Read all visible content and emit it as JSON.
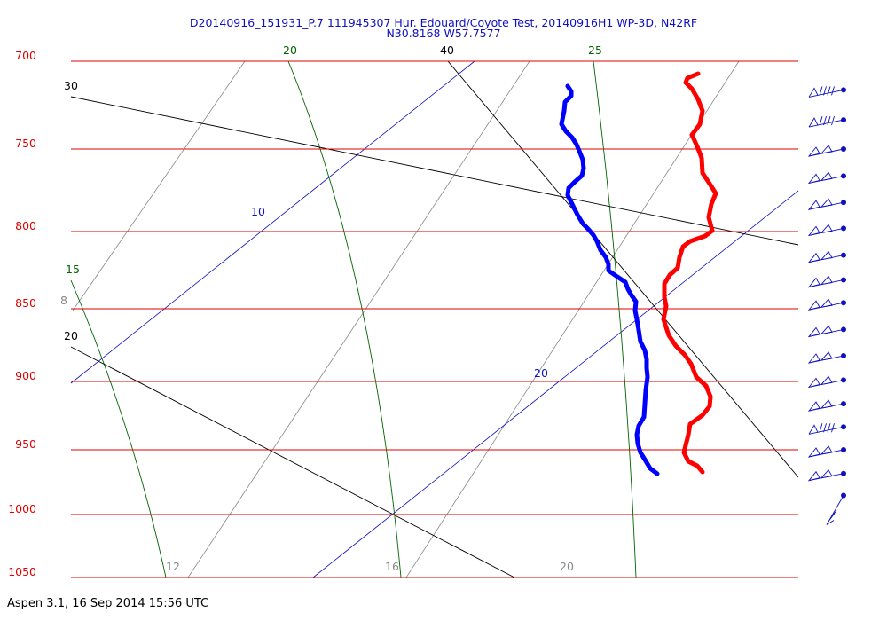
{
  "chart_data": {
    "type": "line",
    "title_line1": "D20140916_151931_P.7 111945307 Hur. Edouard/Coyote Test, 20140916H1 WP-3D, N42RF",
    "title_line2": "N30.8168 W57.7577",
    "footer": "Aspen 3.1, 16 Sep 2014  15:56 UTC",
    "pressure_axis": {
      "ticks": [
        700,
        750,
        800,
        850,
        900,
        950,
        1000,
        1050
      ],
      "labels": [
        "700",
        "750",
        "800",
        "850",
        "900",
        "950",
        "1000",
        "1050"
      ],
      "range": [
        700,
        1050
      ],
      "isobar_color": "#e00000"
    },
    "dry_adiabats": {
      "color": "#000000",
      "labels": [
        {
          "text": "30"
        },
        {
          "text": "40"
        },
        {
          "text": "20"
        }
      ]
    },
    "moist_adiabats": {
      "color": "#006400",
      "labels": [
        {
          "text": "20"
        },
        {
          "text": "25"
        },
        {
          "text": "15"
        }
      ]
    },
    "isotherms": {
      "color": "#1010c0",
      "labels": [
        {
          "text": "10"
        },
        {
          "text": "20"
        }
      ]
    },
    "mixing_ratio": {
      "color": "#888888",
      "labels": [
        {
          "text": "8"
        },
        {
          "text": "12"
        },
        {
          "text": "16"
        },
        {
          "text": "20"
        }
      ]
    },
    "series": [
      {
        "color": "#ff0000",
        "kind": "temperature",
        "points": [
          [
            787,
            83
          ],
          [
            775,
            88
          ],
          [
            773,
            93
          ],
          [
            780,
            100
          ],
          [
            787,
            112
          ],
          [
            792,
            125
          ],
          [
            789,
            140
          ],
          [
            780,
            152
          ],
          [
            786,
            165
          ],
          [
            791,
            178
          ],
          [
            792,
            195
          ],
          [
            800,
            207
          ],
          [
            807,
            218
          ],
          [
            802,
            230
          ],
          [
            799,
            245
          ],
          [
            803,
            260
          ],
          [
            795,
            266
          ],
          [
            778,
            272
          ],
          [
            770,
            278
          ],
          [
            766,
            290
          ],
          [
            764,
            302
          ],
          [
            755,
            310
          ],
          [
            749,
            320
          ],
          [
            749,
            335
          ],
          [
            751,
            345
          ],
          [
            748,
            360
          ],
          [
            754,
            378
          ],
          [
            762,
            390
          ],
          [
            772,
            400
          ],
          [
            779,
            410
          ],
          [
            785,
            425
          ],
          [
            796,
            435
          ],
          [
            801,
            447
          ],
          [
            800,
            458
          ],
          [
            792,
            468
          ],
          [
            778,
            478
          ],
          [
            776,
            490
          ],
          [
            774,
            498
          ],
          [
            771,
            510
          ],
          [
            776,
            520
          ],
          [
            786,
            525
          ],
          [
            792,
            532
          ]
        ]
      },
      {
        "color": "#0000ff",
        "kind": "dewpoint",
        "points": [
          [
            640,
            97
          ],
          [
            644,
            103
          ],
          [
            644,
            108
          ],
          [
            637,
            115
          ],
          [
            636,
            125
          ],
          [
            633,
            140
          ],
          [
            638,
            148
          ],
          [
            645,
            155
          ],
          [
            650,
            163
          ],
          [
            653,
            170
          ],
          [
            657,
            180
          ],
          [
            658,
            190
          ],
          [
            656,
            198
          ],
          [
            648,
            205
          ],
          [
            641,
            212
          ],
          [
            640,
            220
          ],
          [
            645,
            230
          ],
          [
            651,
            242
          ],
          [
            657,
            252
          ],
          [
            663,
            258
          ],
          [
            669,
            265
          ],
          [
            673,
            272
          ],
          [
            677,
            282
          ],
          [
            683,
            290
          ],
          [
            686,
            298
          ],
          [
            686,
            305
          ],
          [
            696,
            312
          ],
          [
            705,
            318
          ],
          [
            708,
            326
          ],
          [
            712,
            333
          ],
          [
            717,
            340
          ],
          [
            716,
            350
          ],
          [
            718,
            360
          ],
          [
            720,
            372
          ],
          [
            722,
            385
          ],
          [
            727,
            395
          ],
          [
            729,
            405
          ],
          [
            729,
            415
          ],
          [
            730,
            425
          ],
          [
            728,
            440
          ],
          [
            727,
            455
          ],
          [
            726,
            470
          ],
          [
            720,
            480
          ],
          [
            718,
            490
          ],
          [
            719,
            500
          ],
          [
            722,
            510
          ],
          [
            727,
            518
          ],
          [
            733,
            528
          ],
          [
            741,
            534
          ]
        ]
      }
    ],
    "wind_barbs": [
      {
        "pressure": 716,
        "pattern": "pennant-full-full-full-full"
      },
      {
        "pressure": 733,
        "pattern": "pennant-full-full-full-full"
      },
      {
        "pressure": 750,
        "pattern": "pennant-pennant"
      },
      {
        "pressure": 766,
        "pattern": "pennant-pennant"
      },
      {
        "pressure": 782,
        "pattern": "pennant-pennant"
      },
      {
        "pressure": 798,
        "pattern": "pennant-pennant"
      },
      {
        "pressure": 815,
        "pattern": "pennant-pennant"
      },
      {
        "pressure": 831,
        "pattern": "pennant-pennant"
      },
      {
        "pressure": 846,
        "pattern": "pennant-pennant"
      },
      {
        "pressure": 864,
        "pattern": "pennant-pennant"
      },
      {
        "pressure": 882,
        "pattern": "pennant-pennant"
      },
      {
        "pressure": 899,
        "pattern": "pennant-pennant"
      },
      {
        "pressure": 916,
        "pattern": "pennant-pennant"
      },
      {
        "pressure": 933,
        "pattern": "pennant-full-full-full-full"
      },
      {
        "pressure": 950,
        "pattern": "pennant-pennant"
      },
      {
        "pressure": 968,
        "pattern": "pennant-pennant"
      },
      {
        "pressure": 985,
        "pattern": "full-full-half"
      }
    ]
  }
}
